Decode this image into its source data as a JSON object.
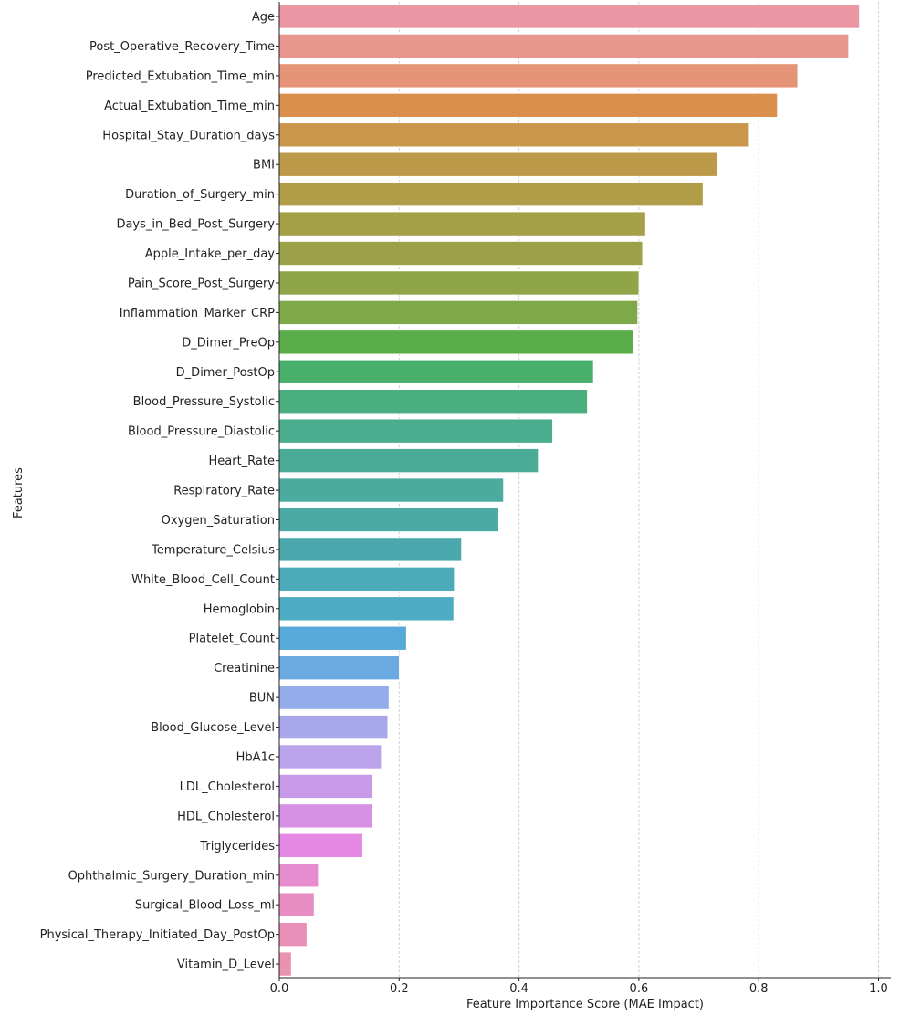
{
  "chart_data": {
    "type": "bar",
    "orientation": "horizontal",
    "title": "",
    "xlabel": "Feature Importance Score (MAE Impact)",
    "ylabel": "Features",
    "xlim": [
      0,
      1.02
    ],
    "xticks": [
      0.0,
      0.2,
      0.4,
      0.6,
      0.8,
      1.0
    ],
    "xtick_labels": [
      "0.0",
      "0.2",
      "0.4",
      "0.6",
      "0.8",
      "1.0"
    ],
    "grid": "x, dashed",
    "categories": [
      "Age",
      "Post_Operative_Recovery_Time",
      "Predicted_Extubation_Time_min",
      "Actual_Extubation_Time_min",
      "Hospital_Stay_Duration_days",
      "BMI",
      "Duration_of_Surgery_min",
      "Days_in_Bed_Post_Surgery",
      "Apple_Intake_per_day",
      "Pain_Score_Post_Surgery",
      "Inflammation_Marker_CRP",
      "D_Dimer_PreOp",
      "D_Dimer_PostOp",
      "Blood_Pressure_Systolic",
      "Blood_Pressure_Diastolic",
      "Heart_Rate",
      "Respiratory_Rate",
      "Oxygen_Saturation",
      "Temperature_Celsius",
      "White_Blood_Cell_Count",
      "Hemoglobin",
      "Platelet_Count",
      "Creatinine",
      "BUN",
      "Blood_Glucose_Level",
      "HbA1c",
      "LDL_Cholesterol",
      "HDL_Cholesterol",
      "Triglycerides",
      "Ophthalmic_Surgery_Duration_min",
      "Surgical_Blood_Loss_ml",
      "Physical_Therapy_Initiated_Day_PostOp",
      "Vitamin_D_Level"
    ],
    "values": [
      0.968,
      0.95,
      0.865,
      0.831,
      0.784,
      0.731,
      0.707,
      0.611,
      0.606,
      0.6,
      0.598,
      0.591,
      0.524,
      0.514,
      0.456,
      0.432,
      0.374,
      0.366,
      0.304,
      0.292,
      0.291,
      0.212,
      0.2,
      0.183,
      0.181,
      0.17,
      0.156,
      0.155,
      0.139,
      0.065,
      0.058,
      0.046,
      0.02
    ],
    "colors": [
      "#ea96a3",
      "#e8978f",
      "#e59478",
      "#da904c",
      "#ca964c",
      "#bd9a4a",
      "#b19d48",
      "#a59f47",
      "#9ca147",
      "#8fa547",
      "#7fa948",
      "#5bad4a",
      "#49b06b",
      "#4aae7f",
      "#4aad8e",
      "#4aac97",
      "#4bab9f",
      "#4baaa6",
      "#4ba9ad",
      "#4daab8",
      "#4eabc4",
      "#56a9d8",
      "#6aaae0",
      "#94acea",
      "#a8a7eb",
      "#bba3ec",
      "#c79be7",
      "#d690e4",
      "#e488e4",
      "#e68ccf",
      "#e88cc4",
      "#ea90b8",
      "#ea93ae"
    ]
  }
}
